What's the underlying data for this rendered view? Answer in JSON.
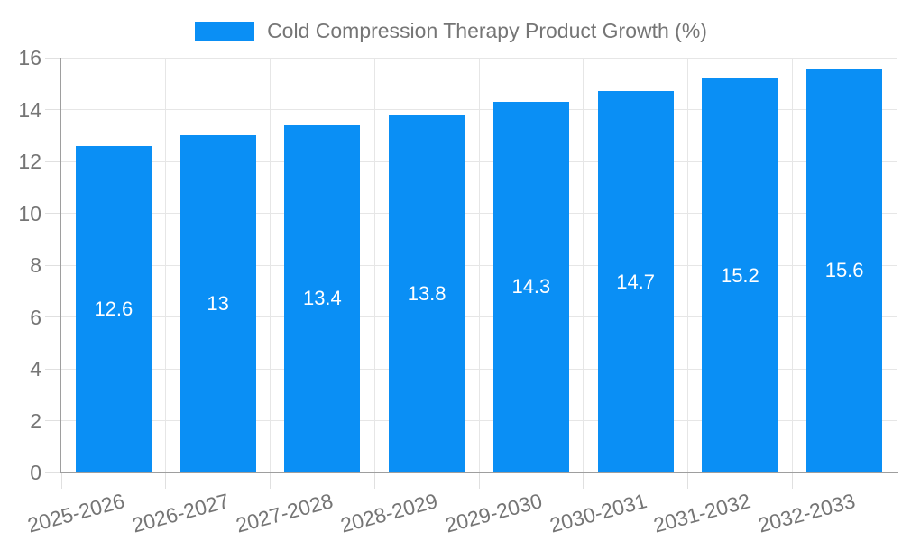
{
  "chart_data": {
    "type": "bar",
    "title": "Cold Compression Therapy Product Growth (%)",
    "categories": [
      "2025-2026",
      "2026-2027",
      "2027-2028",
      "2028-2029",
      "2029-2030",
      "2030-2031",
      "2031-2032",
      "2032-2033"
    ],
    "values": [
      12.6,
      13,
      13.4,
      13.8,
      14.3,
      14.7,
      15.2,
      15.6
    ],
    "value_labels": [
      "12.6",
      "13",
      "13.4",
      "13.8",
      "14.3",
      "14.7",
      "15.2",
      "15.6"
    ],
    "xlabel": "",
    "ylabel": "",
    "ylim": [
      0,
      16
    ],
    "yticks": [
      0,
      2,
      4,
      6,
      8,
      10,
      12,
      14,
      16
    ],
    "grid": "on",
    "legend_position": "top",
    "x_label_rotation_deg": -15,
    "colors": {
      "bar": "#0a8ff5",
      "axis_line": "#9e9e9e",
      "gridline": "#e6e6e6",
      "tick": "#e0e0e0",
      "tick_label": "#757575",
      "legend_text": "#757575",
      "value_label": "#ffffff",
      "background": "#ffffff"
    }
  }
}
